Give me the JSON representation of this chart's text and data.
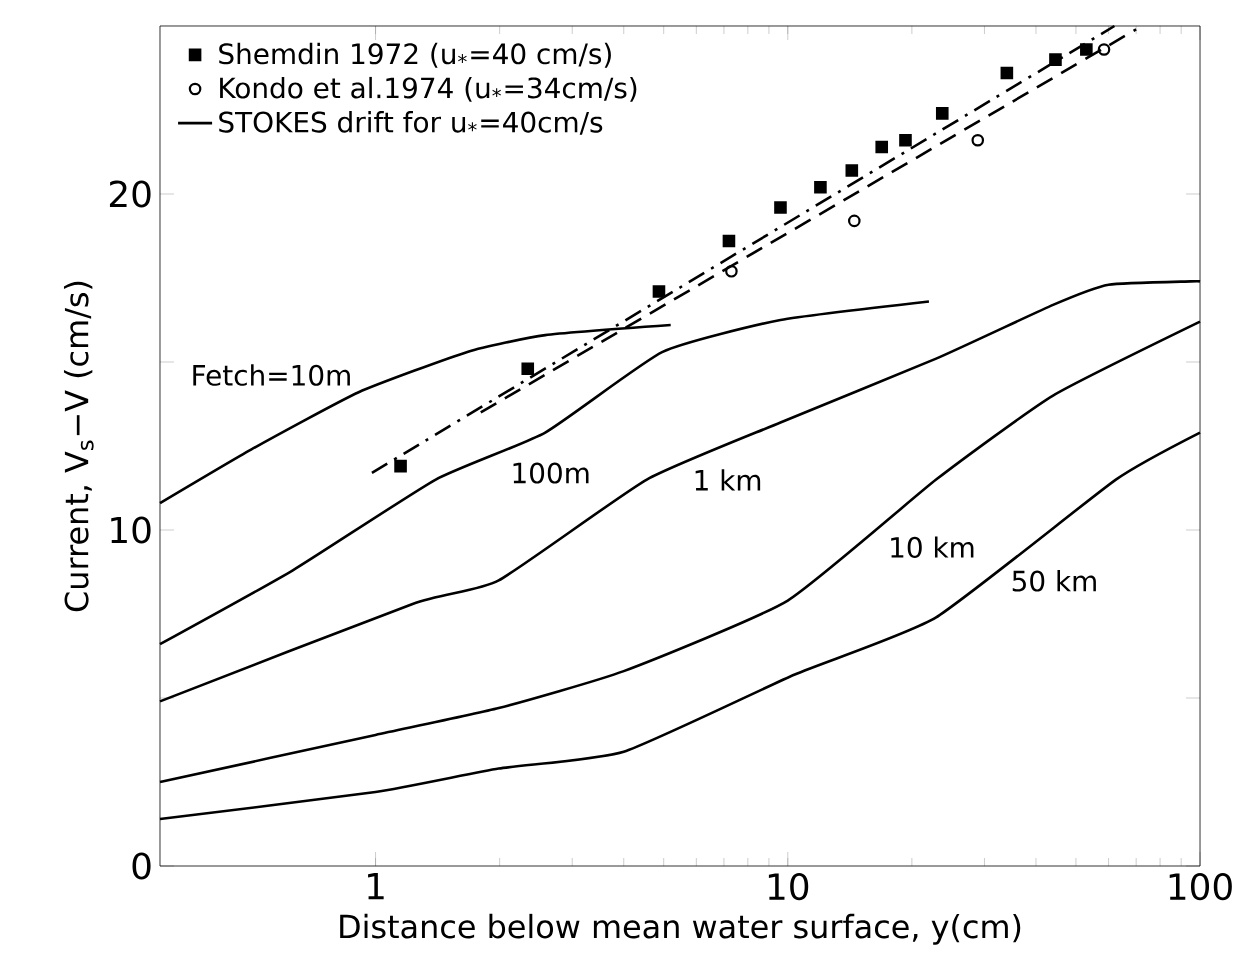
{
  "chart_data": {
    "type": "line",
    "xlabel": "Distance below mean water surface,  y(cm)",
    "ylabel": "Current,  V$_{s}$−V (cm/s)",
    "log": "x",
    "xlim": [
      0.3,
      100
    ],
    "ylim": [
      0,
      25
    ],
    "xticks": [
      1,
      10,
      100
    ],
    "yticks": [
      0,
      {
        "value": 5,
        "label": null
      },
      10,
      {
        "value": 15,
        "label": null
      },
      20
    ],
    "legend": "top left",
    "series": [
      {
        "name": "Shemdin 1972 (u$_{*}$=40 cm/s)",
        "type": "scatter",
        "marker": "square",
        "color": "#000000",
        "x": [
          1.15,
          2.34,
          4.87,
          7.2,
          9.6,
          12.0,
          14.3,
          16.9,
          19.3,
          23.7,
          34.0,
          44.6,
          53
        ],
        "values": [
          11.9,
          14.8,
          17.1,
          18.6,
          19.6,
          20.2,
          20.7,
          21.4,
          21.6,
          22.4,
          23.6,
          24.0,
          24.3
        ]
      },
      {
        "name": "Kondo et al.1974 (u$_{*}$=34cm/s)",
        "type": "scatter",
        "marker": "circle",
        "color": "#000000",
        "x": [
          7.3,
          14.5,
          28.9,
          58.5
        ],
        "values": [
          17.7,
          19.2,
          21.6,
          24.3
        ]
      },
      {
        "name": "STOKES drift for u$_{*}$=40cm/s",
        "line_style": "solid",
        "color": "#000000",
        "x": [
          0.3,
          0.5,
          0.91,
          1.67,
          2.58,
          5.2
        ],
        "values": [
          10.8,
          12.4,
          14.1,
          15.3,
          15.8,
          16.1
        ]
      },
      {
        "line_style": "solid",
        "color": "#000000",
        "x": [
          0.3,
          0.63,
          1.4,
          2.58,
          4.97,
          9.6,
          22
        ],
        "values": [
          6.6,
          8.8,
          11.5,
          12.9,
          15.3,
          16.25,
          16.8
        ]
      },
      {
        "line_style": "solid",
        "color": "#000000",
        "x": [
          0.3,
          1.23,
          1.99,
          4.55,
          9.6,
          22.9,
          44,
          60,
          95,
          100
        ],
        "values": [
          4.9,
          7.8,
          8.5,
          11.5,
          13.2,
          15.1,
          16.7,
          17.3,
          17.4,
          17.4
        ]
      },
      {
        "line_style": "solid",
        "color": "#000000",
        "x": [
          0.3,
          1,
          1.99,
          4.0,
          10,
          22.9,
          44,
          100
        ],
        "values": [
          2.5,
          3.9,
          4.7,
          5.8,
          7.9,
          11.5,
          14.0,
          16.2
        ]
      },
      {
        "line_style": "solid",
        "color": "#000000",
        "x": [
          0.3,
          1,
          1.99,
          4,
          10.4,
          22.9,
          62.5,
          100
        ],
        "values": [
          1.4,
          2.2,
          2.9,
          3.4,
          5.7,
          7.4,
          11.5,
          12.9
        ]
      },
      {
        "line_style": "dash-dot",
        "color": "#000000",
        "x": [
          0.98,
          62
        ],
        "values": [
          11.7,
          25
        ]
      },
      {
        "line_style": "dashed",
        "color": "#000000",
        "x": [
          1.8,
          70
        ],
        "values": [
          13.5,
          24.9
        ]
      }
    ],
    "annotations": [
      {
        "text": "Fetch=10m",
        "x": 0.91,
        "y": 14.1
      },
      {
        "text": "100m",
        "x": 2.05,
        "y": 12.2
      },
      {
        "text": "1 km",
        "x": 5.67,
        "y": 12.0
      },
      {
        "text": "10 km",
        "x": 16.9,
        "y": 10.0
      },
      {
        "text": "50 km",
        "x": 33.5,
        "y": 9.0
      }
    ]
  }
}
